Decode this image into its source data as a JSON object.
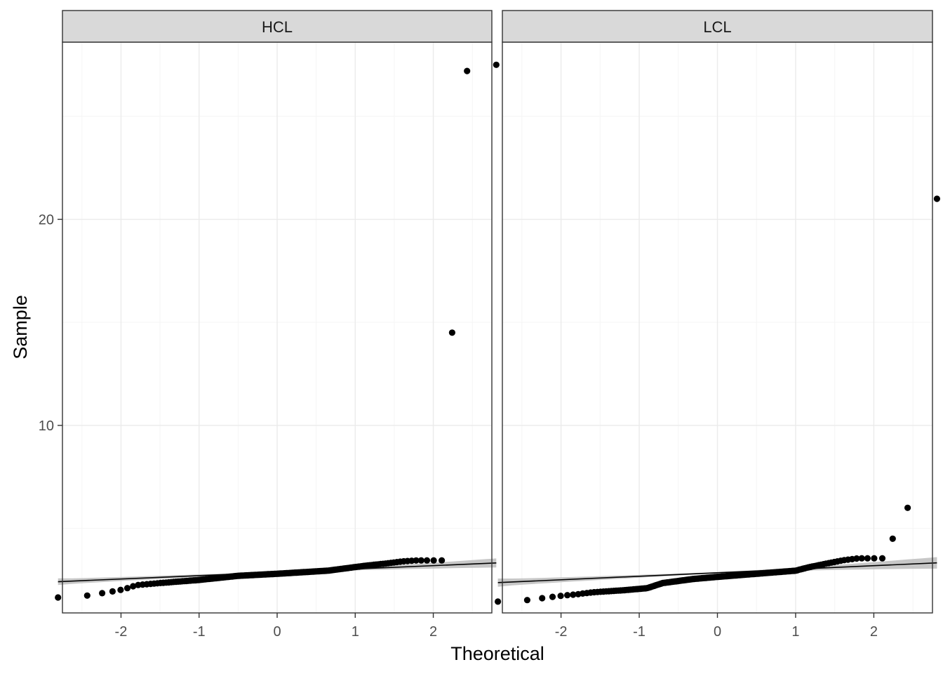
{
  "chart_data": {
    "type": "scatter",
    "subtype": "qq-plot",
    "xlabel": "Theoretical",
    "ylabel": "Sample",
    "x_ticks": [
      -2,
      -1,
      0,
      1,
      2
    ],
    "y_ticks": [
      10,
      20
    ],
    "xlim": [
      -2.75,
      2.75
    ],
    "ylim": [
      0.9,
      28.6
    ],
    "grid": true,
    "reference_line": true,
    "confidence_band": true,
    "colors": {
      "points": "#000000",
      "line": "#000000",
      "band": "#bdbdbd",
      "strip_fill": "#d9d9d9",
      "grid_major": "#ebebeb",
      "grid_minor": "#f5f5f5",
      "panel_border": "#333333"
    },
    "panels": [
      {
        "label": "HCL",
        "outliers": [
          [
            1.96,
            14.5
          ],
          [
            2.17,
            27.2
          ],
          [
            2.58,
            27.5
          ]
        ],
        "line": {
          "intercept": 2.87,
          "slope": 0.162
        },
        "band_halfwidth": [
          0.16,
          0.03,
          0.22
        ]
      },
      {
        "label": "LCL",
        "outliers": [
          [
            1.96,
            4.5
          ],
          [
            2.17,
            6.0
          ],
          [
            2.58,
            21.0
          ]
        ],
        "line": {
          "intercept": 2.85,
          "slope": 0.171
        },
        "band_halfwidth": [
          0.2,
          0.03,
          0.28
        ]
      }
    ]
  }
}
